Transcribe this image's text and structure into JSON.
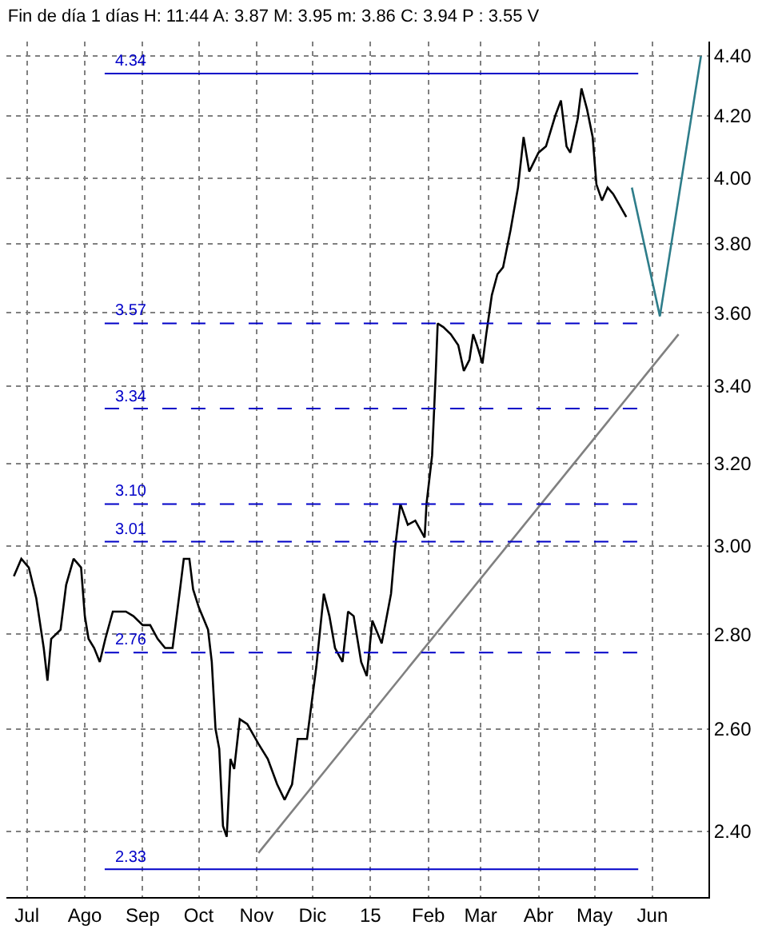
{
  "chart_data": {
    "type": "line",
    "title": "Fin de día 1 días H: 11:44 A: 3.87 M: 3.95 m: 3.86 C: 3.94 P : 3.55 V",
    "log": "y",
    "grid": true,
    "xlim": [
      "2014-06-20",
      "2015-07-01"
    ],
    "xticks": [
      {
        "value": "2014-07-01",
        "label": "Jul"
      },
      {
        "value": "2014-08-01",
        "label": "Ago"
      },
      {
        "value": "2014-09-01",
        "label": "Sep"
      },
      {
        "value": "2014-10-01",
        "label": "Oct"
      },
      {
        "value": "2014-11-01",
        "label": "Nov"
      },
      {
        "value": "2014-12-01",
        "label": "Dic"
      },
      {
        "value": "2015-01-01",
        "label": "15"
      },
      {
        "value": "2015-02-01",
        "label": "Feb"
      },
      {
        "value": "2015-03-01",
        "label": "Mar"
      },
      {
        "value": "2015-04-01",
        "label": "Abr"
      },
      {
        "value": "2015-05-01",
        "label": "May"
      },
      {
        "value": "2015-06-01",
        "label": "Jun"
      }
    ],
    "ylim": [
      2.28,
      4.45
    ],
    "yticks": [
      {
        "value": 2.4,
        "label": "2.40"
      },
      {
        "value": 2.6,
        "label": "2.60"
      },
      {
        "value": 2.8,
        "label": "2.80"
      },
      {
        "value": 3.0,
        "label": "3.00"
      },
      {
        "value": 3.2,
        "label": "3.20"
      },
      {
        "value": 3.4,
        "label": "3.40"
      },
      {
        "value": 3.6,
        "label": "3.60"
      },
      {
        "value": 3.8,
        "label": "3.80"
      },
      {
        "value": 4.0,
        "label": "4.00"
      },
      {
        "value": 4.2,
        "label": "4.20"
      },
      {
        "value": 4.4,
        "label": "4.40"
      }
    ],
    "series": [
      {
        "color": "#000000",
        "x": [
          "2014-06-24",
          "2014-06-28",
          "2014-07-02",
          "2014-07-06",
          "2014-07-10",
          "2014-07-12",
          "2014-07-14",
          "2014-07-19",
          "2014-07-22",
          "2014-07-26",
          "2014-07-30",
          "2014-08-01",
          "2014-08-03",
          "2014-08-06",
          "2014-08-09",
          "2014-08-12",
          "2014-08-16",
          "2014-08-23",
          "2014-08-27",
          "2014-09-01",
          "2014-09-05",
          "2014-09-09",
          "2014-09-13",
          "2014-09-17",
          "2014-09-21",
          "2014-09-23",
          "2014-09-26",
          "2014-09-28",
          "2014-10-01",
          "2014-10-03",
          "2014-10-06",
          "2014-10-08",
          "2014-10-10",
          "2014-10-12",
          "2014-10-14",
          "2014-10-16",
          "2014-10-18",
          "2014-10-20",
          "2014-10-23",
          "2014-10-27",
          "2014-11-02",
          "2014-11-07",
          "2014-11-12",
          "2014-11-16",
          "2014-11-20",
          "2014-11-23",
          "2014-11-28",
          "2014-12-03",
          "2014-12-07",
          "2014-12-10",
          "2014-12-13",
          "2014-12-17",
          "2014-12-20",
          "2014-12-23",
          "2014-12-27",
          "2014-12-30",
          "2015-01-02",
          "2015-01-07",
          "2015-01-12",
          "2015-01-14",
          "2015-01-17",
          "2015-01-21",
          "2015-01-25",
          "2015-01-30",
          "2015-01-31",
          "2015-02-03",
          "2015-02-05",
          "2015-02-06",
          "2015-02-09",
          "2015-02-13",
          "2015-02-17",
          "2015-02-20",
          "2015-02-23",
          "2015-02-25",
          "2015-02-27",
          "2015-03-02",
          "2015-03-04",
          "2015-03-07",
          "2015-03-10",
          "2015-03-13",
          "2015-03-17",
          "2015-03-21",
          "2015-03-24",
          "2015-03-27",
          "2015-04-01",
          "2015-04-05",
          "2015-04-10",
          "2015-04-13",
          "2015-04-16",
          "2015-04-18",
          "2015-04-22",
          "2015-04-24",
          "2015-04-27",
          "2015-04-30",
          "2015-05-02",
          "2015-05-05",
          "2015-05-08",
          "2015-05-11",
          "2015-05-13",
          "2015-05-18"
        ],
        "values": [
          2.93,
          2.97,
          2.95,
          2.88,
          2.77,
          2.7,
          2.79,
          2.81,
          2.91,
          2.97,
          2.95,
          2.84,
          2.79,
          2.77,
          2.74,
          2.79,
          2.85,
          2.85,
          2.84,
          2.82,
          2.82,
          2.79,
          2.77,
          2.77,
          2.9,
          2.97,
          2.97,
          2.9,
          2.86,
          2.84,
          2.81,
          2.74,
          2.6,
          2.56,
          2.41,
          2.39,
          2.54,
          2.52,
          2.62,
          2.61,
          2.57,
          2.54,
          2.49,
          2.46,
          2.49,
          2.58,
          2.58,
          2.73,
          2.89,
          2.84,
          2.77,
          2.74,
          2.85,
          2.84,
          2.74,
          2.71,
          2.83,
          2.78,
          2.89,
          2.99,
          3.1,
          3.05,
          3.06,
          3.02,
          3.1,
          3.22,
          3.44,
          3.57,
          3.56,
          3.54,
          3.51,
          3.44,
          3.47,
          3.54,
          3.51,
          3.46,
          3.54,
          3.65,
          3.71,
          3.73,
          3.84,
          3.97,
          4.13,
          4.02,
          4.08,
          4.1,
          4.2,
          4.25,
          4.1,
          4.08,
          4.19,
          4.29,
          4.22,
          4.13,
          3.98,
          3.93,
          3.97,
          3.95,
          3.93,
          3.88
        ]
      },
      {
        "color": "#808080",
        "x": [
          "2014-11-02",
          "2015-06-15"
        ],
        "values": [
          2.36,
          3.54
        ]
      },
      {
        "color": "#2e7d8a",
        "x": [
          "2015-05-21",
          "2015-06-05",
          "2015-06-27"
        ],
        "values": [
          3.97,
          3.59,
          4.4
        ]
      }
    ],
    "ref_lines": [
      {
        "axis": "y",
        "value": 4.34,
        "label": "4.34",
        "color": "#0000c8",
        "line_style": "solid"
      },
      {
        "axis": "y",
        "value": 3.57,
        "label": "3.57",
        "color": "#0000c8",
        "line_style": "dashed"
      },
      {
        "axis": "y",
        "value": 3.34,
        "label": "3.34",
        "color": "#0000c8",
        "line_style": "dashed"
      },
      {
        "axis": "y",
        "value": 3.1,
        "label": "3.10",
        "color": "#0000c8",
        "line_style": "dashed"
      },
      {
        "axis": "y",
        "value": 3.01,
        "label": "3.01",
        "color": "#0000c8",
        "line_style": "dashed"
      },
      {
        "axis": "y",
        "value": 2.76,
        "label": "2.76",
        "color": "#0000c8",
        "line_style": "dashed"
      },
      {
        "axis": "y",
        "value": 2.33,
        "label": "2.33",
        "color": "#0000c8",
        "line_style": "solid"
      }
    ]
  }
}
